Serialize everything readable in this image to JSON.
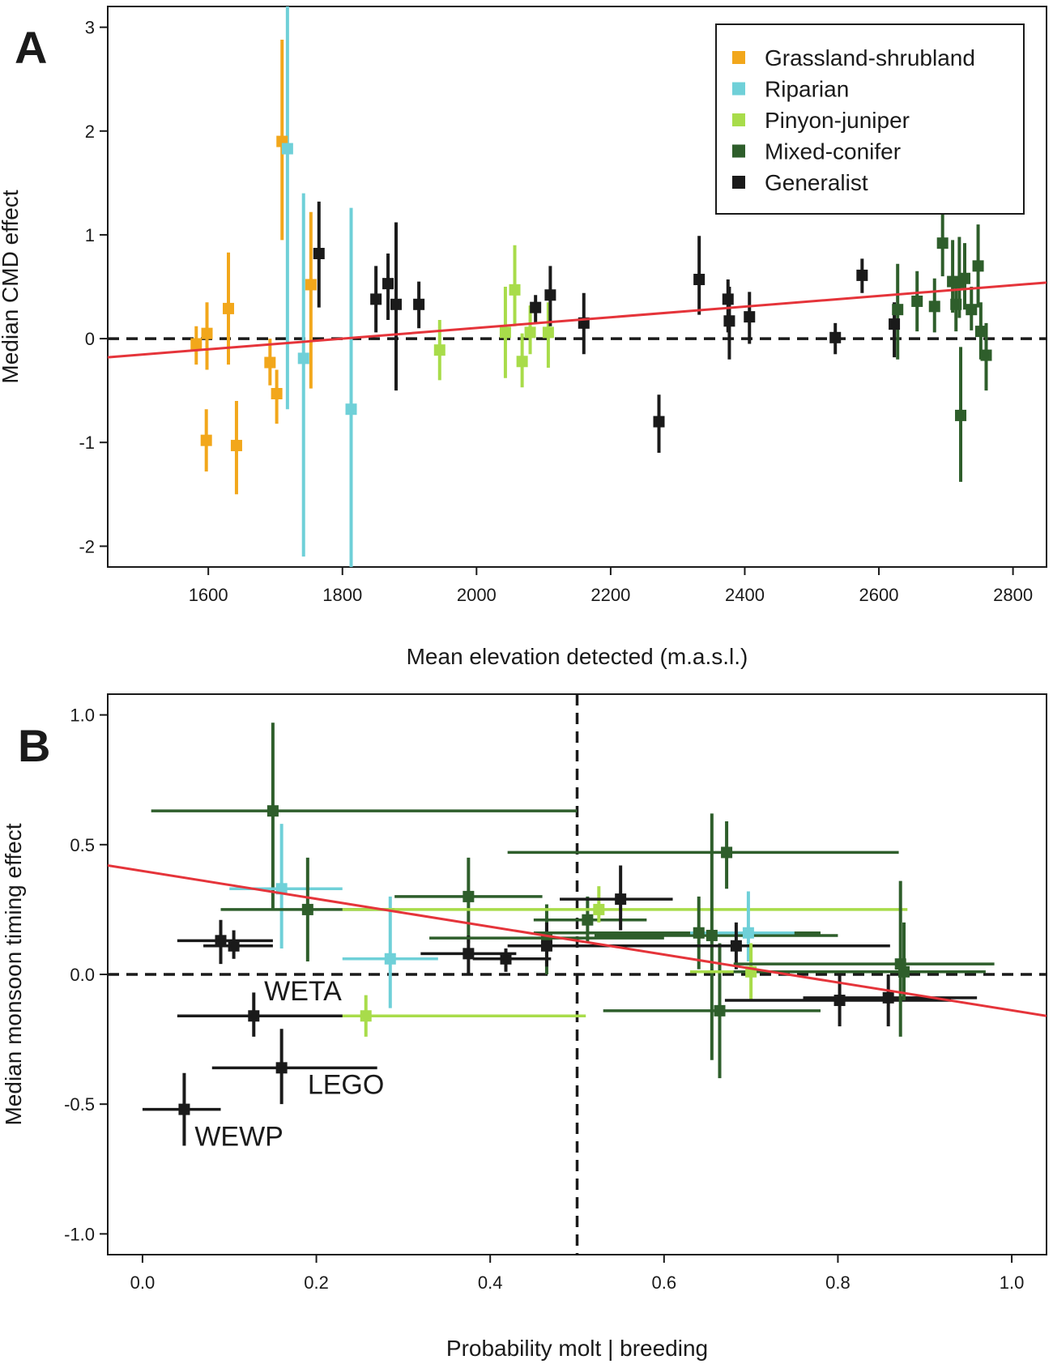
{
  "colors": {
    "grassland": "#f2a71b",
    "riparian": "#6fd0d8",
    "pinyon": "#a8dc4a",
    "conifer": "#2e5e2b",
    "generalist": "#1a1a1a",
    "trend": "#e5343a"
  },
  "chart_data": [
    {
      "type": "scatter",
      "panel": "A",
      "title": "",
      "xlabel": "Mean elevation detected (m.a.s.l.)",
      "ylabel": "Median CMD effect",
      "xlim": [
        1450,
        2850
      ],
      "ylim": [
        -2.2,
        3.2
      ],
      "xticks": [
        1600,
        1800,
        2000,
        2200,
        2400,
        2600,
        2800
      ],
      "yticks": [
        -2,
        -1,
        0,
        1,
        2,
        3
      ],
      "reference_hline": 0,
      "trend_line": {
        "x": [
          1450,
          2850
        ],
        "y": [
          -0.18,
          0.54
        ]
      },
      "legend": {
        "position": "top-right",
        "entries": [
          {
            "label": "Grassland-shrubland",
            "color_key": "grassland"
          },
          {
            "label": "Riparian",
            "color_key": "riparian"
          },
          {
            "label": "Pinyon-juniper",
            "color_key": "pinyon"
          },
          {
            "label": "Mixed-conifer",
            "color_key": "conifer"
          },
          {
            "label": "Generalist",
            "color_key": "generalist"
          }
        ]
      },
      "points": [
        {
          "g": "grassland",
          "x": 1582,
          "y": -0.05,
          "ylo": -0.25,
          "yhi": 0.12
        },
        {
          "g": "grassland",
          "x": 1598,
          "y": 0.05,
          "ylo": -0.3,
          "yhi": 0.35
        },
        {
          "g": "grassland",
          "x": 1597,
          "y": -0.98,
          "ylo": -1.28,
          "yhi": -0.68
        },
        {
          "g": "grassland",
          "x": 1630,
          "y": 0.29,
          "ylo": -0.25,
          "yhi": 0.83
        },
        {
          "g": "grassland",
          "x": 1642,
          "y": -1.03,
          "ylo": -1.5,
          "yhi": -0.6
        },
        {
          "g": "grassland",
          "x": 1692,
          "y": -0.23,
          "ylo": -0.45,
          "yhi": 0.0
        },
        {
          "g": "grassland",
          "x": 1702,
          "y": -0.53,
          "ylo": -0.82,
          "yhi": -0.3
        },
        {
          "g": "grassland",
          "x": 1710,
          "y": 1.9,
          "ylo": 0.95,
          "yhi": 2.88
        },
        {
          "g": "grassland",
          "x": 1753,
          "y": 0.52,
          "ylo": -0.48,
          "yhi": 1.22
        },
        {
          "g": "riparian",
          "x": 1718,
          "y": 1.83,
          "ylo": -0.68,
          "yhi": 3.2
        },
        {
          "g": "riparian",
          "x": 1742,
          "y": -0.19,
          "ylo": -2.1,
          "yhi": 1.4
        },
        {
          "g": "riparian",
          "x": 1813,
          "y": -0.68,
          "ylo": -2.2,
          "yhi": 1.26
        },
        {
          "g": "generalist",
          "x": 1765,
          "y": 0.82,
          "ylo": 0.3,
          "yhi": 1.32
        },
        {
          "g": "generalist",
          "x": 1850,
          "y": 0.38,
          "ylo": 0.06,
          "yhi": 0.7
        },
        {
          "g": "generalist",
          "x": 1868,
          "y": 0.53,
          "ylo": 0.18,
          "yhi": 0.82
        },
        {
          "g": "generalist",
          "x": 1880,
          "y": 0.33,
          "ylo": -0.5,
          "yhi": 1.12
        },
        {
          "g": "generalist",
          "x": 1914,
          "y": 0.33,
          "ylo": 0.1,
          "yhi": 0.55
        },
        {
          "g": "pinyon",
          "x": 1945,
          "y": -0.11,
          "ylo": -0.4,
          "yhi": 0.18
        },
        {
          "g": "pinyon",
          "x": 2043,
          "y": 0.06,
          "ylo": -0.38,
          "yhi": 0.5
        },
        {
          "g": "pinyon",
          "x": 2057,
          "y": 0.47,
          "ylo": 0.12,
          "yhi": 0.9
        },
        {
          "g": "pinyon",
          "x": 2068,
          "y": -0.22,
          "ylo": -0.47,
          "yhi": 0.05
        },
        {
          "g": "pinyon",
          "x": 2080,
          "y": 0.06,
          "ylo": -0.15,
          "yhi": 0.32
        },
        {
          "g": "pinyon",
          "x": 2107,
          "y": 0.06,
          "ylo": -0.28,
          "yhi": 0.35
        },
        {
          "g": "generalist",
          "x": 2088,
          "y": 0.3,
          "ylo": 0.15,
          "yhi": 0.42
        },
        {
          "g": "generalist",
          "x": 2110,
          "y": 0.42,
          "ylo": 0.12,
          "yhi": 0.7
        },
        {
          "g": "generalist",
          "x": 2160,
          "y": 0.15,
          "ylo": -0.15,
          "yhi": 0.44
        },
        {
          "g": "generalist",
          "x": 2272,
          "y": -0.8,
          "ylo": -1.1,
          "yhi": -0.54
        },
        {
          "g": "generalist",
          "x": 2332,
          "y": 0.57,
          "ylo": 0.23,
          "yhi": 0.99
        },
        {
          "g": "generalist",
          "x": 2375,
          "y": 0.38,
          "ylo": 0.06,
          "yhi": 0.57
        },
        {
          "g": "generalist",
          "x": 2377,
          "y": 0.17,
          "ylo": -0.2,
          "yhi": 0.5
        },
        {
          "g": "generalist",
          "x": 2407,
          "y": 0.21,
          "ylo": -0.05,
          "yhi": 0.45
        },
        {
          "g": "generalist",
          "x": 2535,
          "y": 0.01,
          "ylo": -0.15,
          "yhi": 0.15
        },
        {
          "g": "generalist",
          "x": 2575,
          "y": 0.61,
          "ylo": 0.44,
          "yhi": 0.77
        },
        {
          "g": "generalist",
          "x": 2623,
          "y": 0.14,
          "ylo": -0.18,
          "yhi": 0.35
        },
        {
          "g": "conifer",
          "x": 2628,
          "y": 0.28,
          "ylo": -0.2,
          "yhi": 0.72
        },
        {
          "g": "conifer",
          "x": 2657,
          "y": 0.36,
          "ylo": 0.07,
          "yhi": 0.65
        },
        {
          "g": "conifer",
          "x": 2683,
          "y": 0.31,
          "ylo": 0.06,
          "yhi": 0.58
        },
        {
          "g": "conifer",
          "x": 2695,
          "y": 0.92,
          "ylo": 0.6,
          "yhi": 1.22
        },
        {
          "g": "conifer",
          "x": 2710,
          "y": 0.55,
          "ylo": 0.25,
          "yhi": 0.95
        },
        {
          "g": "conifer",
          "x": 2715,
          "y": 0.33,
          "ylo": 0.07,
          "yhi": 0.6
        },
        {
          "g": "conifer",
          "x": 2720,
          "y": 0.54,
          "ylo": 0.2,
          "yhi": 0.98
        },
        {
          "g": "conifer",
          "x": 2722,
          "y": -0.74,
          "ylo": -1.38,
          "yhi": -0.08
        },
        {
          "g": "conifer",
          "x": 2728,
          "y": 0.58,
          "ylo": 0.28,
          "yhi": 0.92
        },
        {
          "g": "conifer",
          "x": 2738,
          "y": 0.28,
          "ylo": 0.08,
          "yhi": 0.5
        },
        {
          "g": "conifer",
          "x": 2748,
          "y": 0.7,
          "ylo": 0.3,
          "yhi": 1.1
        },
        {
          "g": "conifer",
          "x": 2752,
          "y": 0.07,
          "ylo": -0.2,
          "yhi": 0.35
        },
        {
          "g": "conifer",
          "x": 2760,
          "y": -0.16,
          "ylo": -0.5,
          "yhi": 0.15
        }
      ]
    },
    {
      "type": "scatter",
      "panel": "B",
      "title": "",
      "xlabel": "Probability molt | breeding",
      "ylabel": "Median monsoon timing effect",
      "xlim": [
        -0.04,
        1.04
      ],
      "ylim": [
        -1.08,
        1.08
      ],
      "xticks": [
        0.0,
        0.2,
        0.4,
        0.6,
        0.8,
        1.0
      ],
      "xtick_labels": [
        "0.0",
        "0.2",
        "0.4",
        "0.6",
        "0.8",
        "1.0"
      ],
      "yticks": [
        -1.0,
        -0.5,
        0.0,
        0.5,
        1.0
      ],
      "ytick_labels": [
        "-1.0",
        "-0.5",
        "0.0",
        "0.5",
        "1.0"
      ],
      "reference_hline": 0,
      "reference_vline": 0.5,
      "trend_line": {
        "x": [
          -0.04,
          1.04
        ],
        "y": [
          0.42,
          -0.16
        ]
      },
      "annotations": [
        {
          "text": "WETA",
          "x": 0.14,
          "y": -0.1
        },
        {
          "text": "LEGO",
          "x": 0.19,
          "y": -0.46
        },
        {
          "text": "WEWP",
          "x": 0.06,
          "y": -0.66
        }
      ],
      "points": [
        {
          "g": "conifer",
          "x": 0.15,
          "y": 0.63,
          "xlo": 0.01,
          "xhi": 0.5,
          "ylo": 0.25,
          "yhi": 0.97
        },
        {
          "g": "riparian",
          "x": 0.16,
          "y": 0.33,
          "xlo": 0.1,
          "xhi": 0.23,
          "ylo": 0.1,
          "yhi": 0.58
        },
        {
          "g": "conifer",
          "x": 0.19,
          "y": 0.25,
          "xlo": 0.09,
          "xhi": 0.29,
          "ylo": 0.05,
          "yhi": 0.45
        },
        {
          "g": "generalist",
          "x": 0.09,
          "y": 0.13,
          "xlo": 0.04,
          "xhi": 0.15,
          "ylo": 0.04,
          "yhi": 0.21
        },
        {
          "g": "generalist",
          "x": 0.105,
          "y": 0.11,
          "xlo": 0.07,
          "xhi": 0.15,
          "ylo": 0.06,
          "yhi": 0.17
        },
        {
          "g": "riparian",
          "x": 0.285,
          "y": 0.06,
          "xlo": 0.23,
          "xhi": 0.34,
          "ylo": -0.13,
          "yhi": 0.3
        },
        {
          "g": "conifer",
          "x": 0.375,
          "y": 0.3,
          "xlo": 0.29,
          "xhi": 0.46,
          "ylo": 0.12,
          "yhi": 0.45
        },
        {
          "g": "generalist",
          "x": 0.375,
          "y": 0.08,
          "xlo": 0.32,
          "xhi": 0.43,
          "ylo": 0.0,
          "yhi": 0.15
        },
        {
          "g": "generalist",
          "x": 0.418,
          "y": 0.06,
          "xlo": 0.38,
          "xhi": 0.47,
          "ylo": 0.01,
          "yhi": 0.1
        },
        {
          "g": "conifer",
          "x": 0.465,
          "y": 0.14,
          "xlo": 0.33,
          "xhi": 0.6,
          "ylo": 0.0,
          "yhi": 0.27
        },
        {
          "g": "generalist",
          "x": 0.465,
          "y": 0.11,
          "xlo": 0.42,
          "xhi": 0.57,
          "ylo": 0.03,
          "yhi": 0.2
        },
        {
          "g": "conifer",
          "x": 0.512,
          "y": 0.21,
          "xlo": 0.45,
          "xhi": 0.58,
          "ylo": 0.12,
          "yhi": 0.3
        },
        {
          "g": "pinyon",
          "x": 0.525,
          "y": 0.25,
          "xlo": 0.23,
          "xhi": 0.88,
          "ylo": 0.2,
          "yhi": 0.34
        },
        {
          "g": "generalist",
          "x": 0.55,
          "y": 0.29,
          "xlo": 0.48,
          "xhi": 0.61,
          "ylo": 0.17,
          "yhi": 0.42
        },
        {
          "g": "conifer",
          "x": 0.64,
          "y": 0.16,
          "xlo": 0.45,
          "xhi": 0.78,
          "ylo": 0.02,
          "yhi": 0.3
        },
        {
          "g": "conifer",
          "x": 0.655,
          "y": 0.15,
          "xlo": 0.52,
          "xhi": 0.8,
          "ylo": -0.33,
          "yhi": 0.62
        },
        {
          "g": "conifer",
          "x": 0.672,
          "y": 0.47,
          "xlo": 0.42,
          "xhi": 0.87,
          "ylo": 0.33,
          "yhi": 0.59
        },
        {
          "g": "conifer",
          "x": 0.664,
          "y": -0.14,
          "xlo": 0.53,
          "xhi": 0.78,
          "ylo": -0.4,
          "yhi": 0.12
        },
        {
          "g": "riparian",
          "x": 0.697,
          "y": 0.16,
          "xlo": 0.63,
          "xhi": 0.75,
          "ylo": 0.05,
          "yhi": 0.32
        },
        {
          "g": "generalist",
          "x": 0.683,
          "y": 0.11,
          "xlo": 0.55,
          "xhi": 0.86,
          "ylo": 0.02,
          "yhi": 0.2
        },
        {
          "g": "pinyon",
          "x": 0.7,
          "y": 0.01,
          "xlo": 0.63,
          "xhi": 0.78,
          "ylo": -0.1,
          "yhi": 0.12
        },
        {
          "g": "generalist",
          "x": 0.802,
          "y": -0.1,
          "xlo": 0.67,
          "xhi": 0.93,
          "ylo": -0.2,
          "yhi": 0.0
        },
        {
          "g": "generalist",
          "x": 0.858,
          "y": -0.09,
          "xlo": 0.76,
          "xhi": 0.96,
          "ylo": -0.2,
          "yhi": 0.0
        },
        {
          "g": "conifer",
          "x": 0.872,
          "y": 0.04,
          "xlo": 0.68,
          "xhi": 0.98,
          "ylo": -0.24,
          "yhi": 0.36
        },
        {
          "g": "conifer",
          "x": 0.876,
          "y": 0.01,
          "xlo": 0.68,
          "xhi": 0.97,
          "ylo": -0.1,
          "yhi": 0.2
        },
        {
          "g": "pinyon",
          "x": 0.257,
          "y": -0.16,
          "xlo": 0.12,
          "xhi": 0.51,
          "ylo": -0.24,
          "yhi": -0.08
        },
        {
          "g": "generalist",
          "x": 0.128,
          "y": -0.16,
          "xlo": 0.04,
          "xhi": 0.23,
          "ylo": -0.24,
          "yhi": -0.07
        },
        {
          "g": "generalist",
          "x": 0.16,
          "y": -0.36,
          "xlo": 0.08,
          "xhi": 0.27,
          "ylo": -0.5,
          "yhi": -0.21
        },
        {
          "g": "generalist",
          "x": 0.048,
          "y": -0.52,
          "xlo": 0.0,
          "xhi": 0.09,
          "ylo": -0.66,
          "yhi": -0.38
        }
      ]
    }
  ]
}
